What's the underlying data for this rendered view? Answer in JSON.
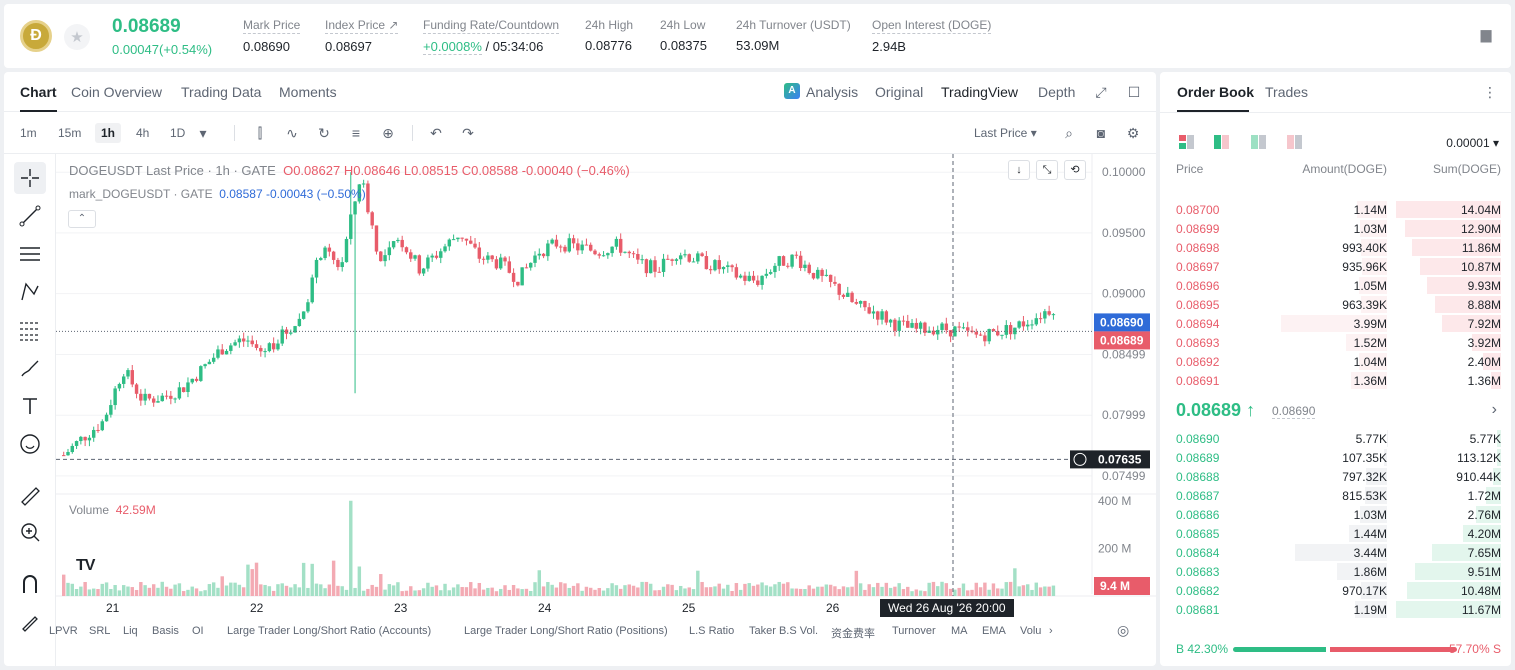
{
  "ticker": {
    "logo_text": "Ð",
    "last_price": "0.08689",
    "change": "0.00047(+0.54%)",
    "stats": [
      {
        "label": "Mark Price",
        "value": "0.08690"
      },
      {
        "label": "Index Price ↗",
        "value": "0.08697"
      },
      {
        "label": "Funding Rate/Countdown",
        "value_rate": "+0.0008%",
        "value_countdown": "/ 05:34:06"
      },
      {
        "label": "24h High",
        "value": "0.08776"
      },
      {
        "label": "24h Low",
        "value": "0.08375"
      },
      {
        "label": "24h Turnover (USDT)",
        "value": "53.09M"
      },
      {
        "label": "Open Interest (DOGE)",
        "value": "2.94B"
      }
    ]
  },
  "chart_tabs": [
    "Chart",
    "Coin Overview",
    "Trading Data",
    "Moments"
  ],
  "view_tabs": {
    "analysis": "Analysis",
    "original": "Original",
    "tradingview": "TradingView",
    "depth": "Depth"
  },
  "intervals": [
    "1m",
    "15m",
    "1h",
    "4h",
    "1D"
  ],
  "price_type": "Last Price",
  "legend": {
    "title": "DOGEUSDT Last Price · 1h · GATE",
    "o": "O0.08627",
    "h": "H0.08646",
    "l": "L0.08515",
    "c": "C0.08588",
    "chg": "-0.00040 (−0.46%)",
    "mark_label": "mark_DOGEUSDT · GATE",
    "mark_vals": "0.08587 -0.00043 (−0.50%)"
  },
  "volume_legend": {
    "label": "Volume",
    "value": "42.59M"
  },
  "crosshair_time": "Wed 26 Aug '26   20:00",
  "indicators": [
    "LPVR",
    "SRL",
    "Liq",
    "Basis",
    "OI",
    "Large Trader Long/Short Ratio (Accounts)",
    "Large Trader Long/Short Ratio (Positions)",
    "L.S Ratio",
    "Taker B.S Vol.",
    "资金费率",
    "Turnover",
    "MA",
    "EMA",
    "Volu"
  ],
  "colors": {
    "up": "#2ebd85",
    "down": "#e85c6a",
    "mark_tag": "#2f6bd8",
    "dark": "#1e2329"
  },
  "chart_data": {
    "type": "candlestick",
    "title": "DOGEUSDT Last Price · 1h · GATE",
    "x_labels": [
      "21",
      "22",
      "23",
      "24",
      "25",
      "26"
    ],
    "y_ticks": [
      "0.10000",
      "0.09500",
      "0.09000",
      "0.08499",
      "0.07999",
      "0.07499"
    ],
    "ylim": [
      0.0735,
      0.1015
    ],
    "price_tags": {
      "mark": "0.08690",
      "last": "0.08689",
      "cursor": "0.07635"
    },
    "volume_ticks": [
      "400 M",
      "200 M"
    ],
    "volume_tag": "9.4 M",
    "close_path_approx": [
      0.0767,
      0.0782,
      0.0795,
      0.0838,
      0.0812,
      0.0815,
      0.0822,
      0.0838,
      0.0855,
      0.0862,
      0.0852,
      0.0865,
      0.088,
      0.0935,
      0.0922,
      0.0998,
      0.0925,
      0.0945,
      0.092,
      0.0935,
      0.095,
      0.093,
      0.0925,
      0.0912,
      0.0935,
      0.0942,
      0.0938,
      0.0935,
      0.094,
      0.0925,
      0.092,
      0.0935,
      0.0928,
      0.0922,
      0.0915,
      0.091,
      0.0925,
      0.093,
      0.0915,
      0.0905,
      0.089,
      0.0885,
      0.0875,
      0.087,
      0.0872,
      0.087,
      0.0865,
      0.0868,
      0.0872,
      0.088,
      0.0889
    ]
  },
  "order_book": {
    "tabs": [
      "Order Book",
      "Trades"
    ],
    "precision": "0.00001",
    "headers": [
      "Price",
      "Amount(DOGE)",
      "Sum(DOGE)"
    ],
    "asks": [
      {
        "price": "0.08700",
        "amount": "1.14M",
        "sum": "14.04M"
      },
      {
        "price": "0.08699",
        "amount": "1.03M",
        "sum": "12.90M"
      },
      {
        "price": "0.08698",
        "amount": "993.40K",
        "sum": "11.86M"
      },
      {
        "price": "0.08697",
        "amount": "935.96K",
        "sum": "10.87M"
      },
      {
        "price": "0.08696",
        "amount": "1.05M",
        "sum": "9.93M"
      },
      {
        "price": "0.08695",
        "amount": "963.39K",
        "sum": "8.88M"
      },
      {
        "price": "0.08694",
        "amount": "3.99M",
        "sum": "7.92M"
      },
      {
        "price": "0.08693",
        "amount": "1.52M",
        "sum": "3.92M"
      },
      {
        "price": "0.08692",
        "amount": "1.04M",
        "sum": "2.40M"
      },
      {
        "price": "0.08691",
        "amount": "1.36M",
        "sum": "1.36M"
      }
    ],
    "mid_price": "0.08689 ↑",
    "mid_mark": "0.08690",
    "bids": [
      {
        "price": "0.08690",
        "amount": "5.77K",
        "sum": "5.77K"
      },
      {
        "price": "0.08689",
        "amount": "107.35K",
        "sum": "113.12K"
      },
      {
        "price": "0.08688",
        "amount": "797.32K",
        "sum": "910.44K"
      },
      {
        "price": "0.08687",
        "amount": "815.53K",
        "sum": "1.72M"
      },
      {
        "price": "0.08686",
        "amount": "1.03M",
        "sum": "2.76M"
      },
      {
        "price": "0.08685",
        "amount": "1.44M",
        "sum": "4.20M"
      },
      {
        "price": "0.08684",
        "amount": "3.44M",
        "sum": "7.65M"
      },
      {
        "price": "0.08683",
        "amount": "1.86M",
        "sum": "9.51M"
      },
      {
        "price": "0.08682",
        "amount": "970.17K",
        "sum": "10.48M"
      },
      {
        "price": "0.08681",
        "amount": "1.19M",
        "sum": "11.67M"
      }
    ],
    "buy_ratio": "B 42.30%",
    "sell_ratio": "57.70% S",
    "buy_ratio_value": 42.3
  }
}
